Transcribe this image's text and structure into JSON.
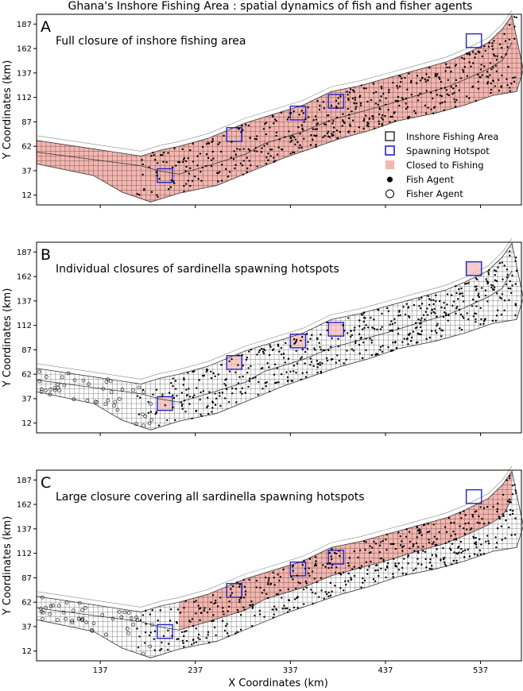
{
  "figure": {
    "title": "Ghana's Inshore Fishing Area : spatial dynamics of fish and fisher agents",
    "xlabel": "X Coordinates (km)",
    "ylabel": "Y Coordinates (km)",
    "xticks": [
      137,
      237,
      337,
      437,
      537
    ],
    "yticks": [
      12,
      37,
      62,
      87,
      112,
      137,
      162,
      187
    ],
    "xlim": [
      70,
      580
    ],
    "ylim": [
      2,
      197
    ]
  },
  "colors": {
    "closed": "#f4b6b0",
    "grid": "#000000",
    "hotspot": "#2222cc",
    "coast": "#888888"
  },
  "legend": {
    "items": [
      {
        "label": "Inshore Fishing Area",
        "marker": "open-square"
      },
      {
        "label": "Spawning Hotspot",
        "marker": "blue-square"
      },
      {
        "label": "Closed to Fishing",
        "marker": "filled-pink-square"
      },
      {
        "label": "Fish Agent",
        "marker": "dot"
      },
      {
        "label": "Fisher Agent",
        "marker": "open-circle"
      }
    ],
    "placement": "right-center (panel A)"
  },
  "chart_data": [
    {
      "type": "scatter",
      "panel": "A",
      "annotation": "Full closure of inshore fishing area",
      "closure": "entire inshore fishing area",
      "fisher_agents_visible": false
    },
    {
      "type": "scatter",
      "panel": "B",
      "annotation": "Individual closures of sardinella spawning hotspots",
      "closure": "each spawning hotspot only",
      "fisher_agents_visible": true
    },
    {
      "type": "scatter",
      "panel": "C",
      "annotation": "Large closure covering all sardinella  spawning hotspots",
      "closure": "upper band spanning all hotspots",
      "fisher_agents_visible": true
    }
  ]
}
